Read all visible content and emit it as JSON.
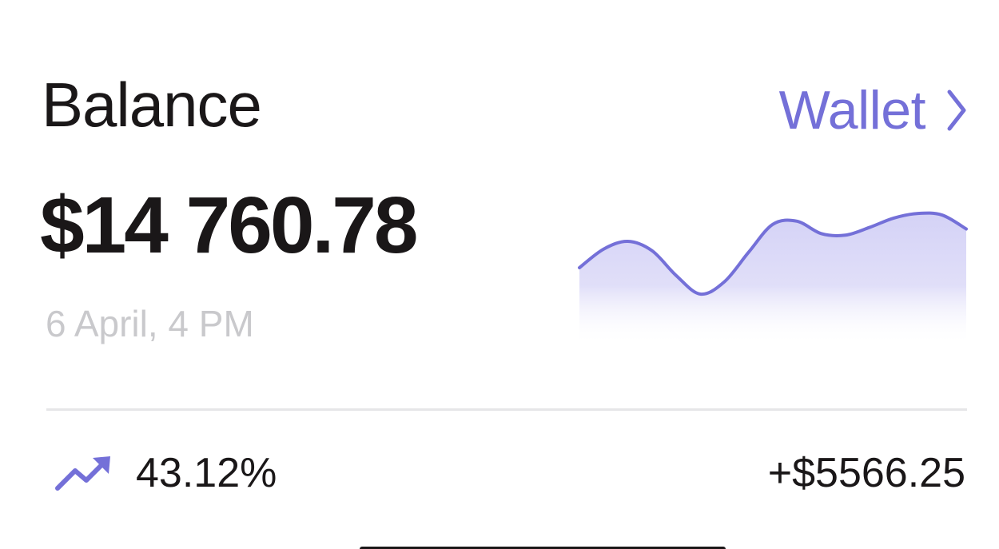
{
  "header": {
    "title": "Balance",
    "wallet_label": "Wallet",
    "wallet_icon": "chevron-right-icon"
  },
  "balance": {
    "amount": "$14 760.78",
    "timestamp": "6 April, 4 PM"
  },
  "change": {
    "icon": "trending-up-icon",
    "percent": "43.12%",
    "amount": "+$5566.25"
  },
  "colors": {
    "accent": "#7470d8",
    "fill_top": "#d4d2f6",
    "text_primary": "#1a1718",
    "text_muted": "#c9c9cc",
    "divider": "#e6e6e8"
  },
  "chart_data": {
    "type": "area",
    "x": [
      0,
      1,
      2,
      3,
      4,
      5,
      6,
      7,
      8,
      9,
      10,
      11,
      12,
      13,
      14,
      15,
      16
    ],
    "values": [
      50,
      62,
      67,
      61,
      45,
      33,
      41,
      60,
      78,
      80,
      72,
      71,
      76,
      82,
      85,
      84,
      75
    ],
    "ylim": [
      0,
      100
    ],
    "title": "",
    "xlabel": "",
    "ylabel": "",
    "grid": false
  }
}
